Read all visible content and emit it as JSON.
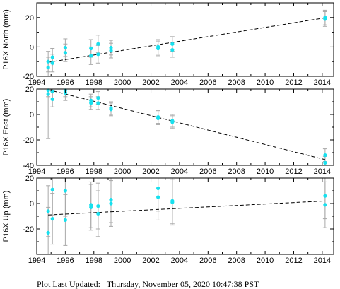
{
  "colors": {
    "point": "#18e0ee",
    "errorbar": "#a8a8a8",
    "trend": "#000000",
    "axis": "#000000"
  },
  "footer": {
    "label": "Plot Last Updated:",
    "value": "Thursday, November 05, 2020 10:47:38 PST"
  },
  "chart_data": [
    {
      "type": "scatter",
      "ylabel": "P16X North (mm)",
      "xlim": [
        1994,
        2014.8
      ],
      "ylim": [
        -20,
        30
      ],
      "xticks": [
        1994,
        1996,
        1998,
        2000,
        2002,
        2004,
        2006,
        2008,
        2010,
        2012,
        2014
      ],
      "yticks": [
        -20,
        0,
        20
      ],
      "show_xtick_labels": true,
      "trend": {
        "x": [
          1994.8,
          2014.2
        ],
        "y": [
          -10.5,
          19.8
        ]
      },
      "points": [
        {
          "x": 1994.8,
          "y": -10,
          "err": 7
        },
        {
          "x": 1994.8,
          "y": -14,
          "err": 7
        },
        {
          "x": 1995.1,
          "y": -7,
          "err": 6
        },
        {
          "x": 1995.1,
          "y": -11,
          "err": 6
        },
        {
          "x": 1996.0,
          "y": -0.5,
          "err": 6
        },
        {
          "x": 1996.0,
          "y": -4,
          "err": 6
        },
        {
          "x": 1997.8,
          "y": -1,
          "err": 6
        },
        {
          "x": 1997.8,
          "y": -6,
          "err": 6
        },
        {
          "x": 1998.3,
          "y": 2,
          "err": 6
        },
        {
          "x": 1998.3,
          "y": -5,
          "err": 6
        },
        {
          "x": 1999.2,
          "y": -0.5,
          "err": 5
        },
        {
          "x": 1999.2,
          "y": -2.5,
          "err": 5
        },
        {
          "x": 2002.5,
          "y": 0,
          "err": 5
        },
        {
          "x": 2002.5,
          "y": -1,
          "err": 5
        },
        {
          "x": 2003.5,
          "y": 2,
          "err": 5
        },
        {
          "x": 2003.5,
          "y": -2,
          "err": 5
        },
        {
          "x": 2014.2,
          "y": 20,
          "err": 5
        },
        {
          "x": 2014.2,
          "y": 19,
          "err": 5
        }
      ]
    },
    {
      "type": "scatter",
      "ylabel": "P16X East (mm)",
      "xlim": [
        1994,
        2014.8
      ],
      "ylim": [
        -40,
        20
      ],
      "xticks": [
        1994,
        1996,
        1998,
        2000,
        2002,
        2004,
        2006,
        2008,
        2010,
        2012,
        2014
      ],
      "yticks": [
        -40,
        -20,
        0,
        20
      ],
      "show_xtick_labels": true,
      "trend": {
        "x": [
          1994.8,
          2014.2
        ],
        "y": [
          19.5,
          -35.5
        ]
      },
      "points": [
        {
          "x": 1994.8,
          "y": 19,
          "err": 5
        },
        {
          "x": 1994.8,
          "y": 16,
          "err": 35
        },
        {
          "x": 1995.1,
          "y": 18,
          "err": 5
        },
        {
          "x": 1995.1,
          "y": 12,
          "err": 6
        },
        {
          "x": 1996.0,
          "y": 19,
          "err": 5
        },
        {
          "x": 1996.0,
          "y": 17,
          "err": 6
        },
        {
          "x": 1997.8,
          "y": 11,
          "err": 5
        },
        {
          "x": 1997.8,
          "y": 9,
          "err": 5
        },
        {
          "x": 1998.3,
          "y": 13,
          "err": 5
        },
        {
          "x": 1998.3,
          "y": 9,
          "err": 5
        },
        {
          "x": 1999.2,
          "y": 5,
          "err": 5
        },
        {
          "x": 1999.2,
          "y": 4,
          "err": 5
        },
        {
          "x": 2002.5,
          "y": -2,
          "err": 5
        },
        {
          "x": 2002.5,
          "y": -3,
          "err": 5
        },
        {
          "x": 2003.5,
          "y": -5,
          "err": 5
        },
        {
          "x": 2003.5,
          "y": -6,
          "err": 5
        },
        {
          "x": 2014.2,
          "y": -32,
          "err": 5
        },
        {
          "x": 2014.2,
          "y": -38,
          "err": 5
        }
      ]
    },
    {
      "type": "scatter",
      "ylabel": "P16X Up (mm)",
      "xlim": [
        1994,
        2014.8
      ],
      "ylim": [
        -40,
        20
      ],
      "xticks": [
        1994,
        1996,
        1998,
        2000,
        2002,
        2004,
        2006,
        2008,
        2010,
        2012,
        2014
      ],
      "yticks": [
        -20,
        0,
        20
      ],
      "show_xtick_labels": true,
      "trend": {
        "x": [
          1994.8,
          2014.2
        ],
        "y": [
          -9,
          2
        ]
      },
      "points": [
        {
          "x": 1994.8,
          "y": -6,
          "err": 20
        },
        {
          "x": 1994.8,
          "y": -23,
          "err": 20
        },
        {
          "x": 1995.1,
          "y": 11,
          "err": 20
        },
        {
          "x": 1995.1,
          "y": -12,
          "err": 20
        },
        {
          "x": 1996.0,
          "y": 10,
          "err": 20
        },
        {
          "x": 1996.0,
          "y": -13,
          "err": 20
        },
        {
          "x": 1997.8,
          "y": -1,
          "err": 18
        },
        {
          "x": 1997.8,
          "y": -3,
          "err": 18
        },
        {
          "x": 1998.3,
          "y": -2,
          "err": 18
        },
        {
          "x": 1998.3,
          "y": -8,
          "err": 18
        },
        {
          "x": 1999.2,
          "y": 3,
          "err": 18
        },
        {
          "x": 1999.2,
          "y": 0,
          "err": 18
        },
        {
          "x": 2002.5,
          "y": 12,
          "err": 18
        },
        {
          "x": 2002.5,
          "y": 5,
          "err": 18
        },
        {
          "x": 2003.5,
          "y": 2,
          "err": 18
        },
        {
          "x": 2003.5,
          "y": 1,
          "err": 18
        },
        {
          "x": 2014.2,
          "y": 6,
          "err": 18
        },
        {
          "x": 2014.2,
          "y": -1,
          "err": 18
        }
      ]
    }
  ]
}
